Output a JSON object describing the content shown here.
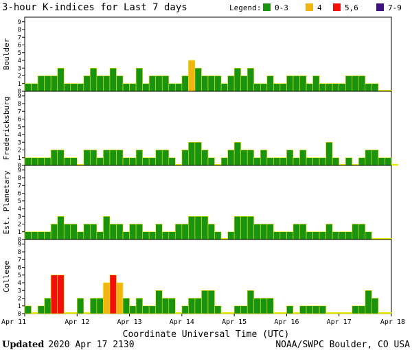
{
  "chart_data": {
    "type": "bar",
    "title": "3-hour K-indices for Last 7 days",
    "legend": {
      "label": "Legend:",
      "placement": "top-right",
      "items": [
        {
          "label": "0-3",
          "color": "#1a9410"
        },
        {
          "label": "4",
          "color": "#f0b414"
        },
        {
          "label": "5,6",
          "color": "#f01008"
        },
        {
          "label": "7-9",
          "color": "#3c1280"
        }
      ]
    },
    "xlabel": "Coordinate Universal Time (UTC)",
    "x_ticks": [
      "Apr 11",
      "Apr 12",
      "Apr 13",
      "Apr 14",
      "Apr 15",
      "Apr 16",
      "Apr 17",
      "Apr 18"
    ],
    "y_ticks": [
      "0",
      "1",
      "2",
      "3",
      "4",
      "5",
      "6",
      "7",
      "8",
      "9"
    ],
    "ylim": [
      0,
      9
    ],
    "bar_outline_color": "#e8e800",
    "series": [
      {
        "name": "Boulder",
        "values": [
          1,
          1,
          2,
          2,
          2,
          3,
          1,
          1,
          1,
          2,
          3,
          2,
          2,
          3,
          2,
          1,
          1,
          3,
          1,
          2,
          2,
          2,
          1,
          1,
          2,
          4,
          3,
          2,
          2,
          2,
          1,
          2,
          3,
          2,
          3,
          1,
          1,
          2,
          1,
          1,
          2,
          2,
          2,
          1,
          2,
          1,
          1,
          1,
          1,
          2,
          2,
          2,
          1,
          1,
          0,
          0
        ]
      },
      {
        "name": "Fredericksburg",
        "values": [
          1,
          1,
          1,
          1,
          2,
          2,
          1,
          1,
          0,
          2,
          2,
          1,
          2,
          2,
          2,
          1,
          1,
          2,
          1,
          1,
          2,
          2,
          1,
          0,
          2,
          3,
          3,
          2,
          1,
          0,
          1,
          2,
          3,
          2,
          2,
          1,
          2,
          1,
          1,
          1,
          2,
          1,
          2,
          1,
          1,
          1,
          3,
          1,
          0,
          1,
          0,
          1,
          2,
          2,
          1,
          1,
          0
        ]
      },
      {
        "name": "Est. Planetary",
        "values": [
          1,
          1,
          1,
          1,
          2,
          3,
          2,
          2,
          1,
          2,
          2,
          1,
          3,
          2,
          2,
          1,
          2,
          2,
          1,
          1,
          2,
          1,
          1,
          2,
          2,
          3,
          3,
          3,
          2,
          1,
          0,
          1,
          3,
          3,
          3,
          2,
          2,
          2,
          1,
          1,
          1,
          2,
          2,
          1,
          1,
          1,
          2,
          1,
          1,
          1,
          2,
          2,
          1,
          0,
          0,
          0
        ]
      },
      {
        "name": "College",
        "values": [
          1,
          0,
          1,
          2,
          5,
          5,
          0,
          0,
          2,
          0,
          2,
          2,
          4,
          5,
          4,
          2,
          1,
          2,
          1,
          1,
          3,
          2,
          2,
          0,
          1,
          2,
          2,
          3,
          3,
          1,
          0,
          0,
          1,
          1,
          3,
          2,
          2,
          2,
          0,
          0,
          1,
          0,
          1,
          1,
          1,
          1,
          0,
          0,
          0,
          0,
          1,
          1,
          3,
          2,
          0,
          0
        ]
      }
    ]
  },
  "footer": {
    "updated_label": "Updated",
    "updated_value": "2020 Apr 17 2130",
    "source": "NOAA/SWPC Boulder, CO USA"
  }
}
